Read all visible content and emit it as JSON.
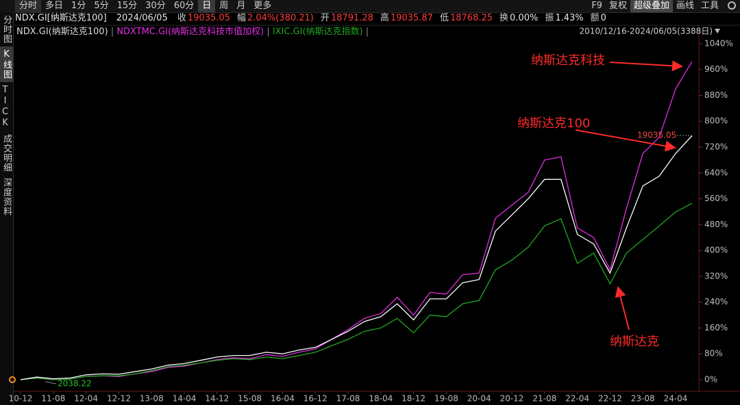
{
  "toolbar": {
    "periods": [
      "分时",
      "多日",
      "1分",
      "5分",
      "15分",
      "30分",
      "60分",
      "日",
      "周",
      "月",
      "更多"
    ],
    "tools": [
      "F9",
      "复权",
      "超级叠加",
      "画线",
      "工具"
    ]
  },
  "quote": {
    "symbol": "NDX.GI[纳斯达克100]",
    "date": "2024/06/05",
    "items": [
      {
        "label": "收",
        "value": "19035.05"
      },
      {
        "label": "幅",
        "value": "2.04%(380.21)"
      },
      {
        "label": "开",
        "value": "18791.28"
      },
      {
        "label": "高",
        "value": "19035.87"
      },
      {
        "label": "低",
        "value": "18768.25"
      },
      {
        "label": "换",
        "value": "0.00%"
      },
      {
        "label": "振",
        "value": "1.43%"
      },
      {
        "label": "额",
        "value": "0"
      }
    ]
  },
  "sidebar": [
    "分时图",
    "K线图",
    "TICK",
    "成交明细",
    "深度资料"
  ],
  "range": "2010/12/16-2024/06/05(3388日)",
  "chart_data": {
    "type": "line",
    "categories": [
      "10-12",
      null,
      "11-08",
      null,
      "12-04",
      null,
      "12-12",
      null,
      "13-08",
      null,
      "14-04",
      null,
      "14-12",
      null,
      "15-08",
      null,
      "16-04",
      null,
      "16-12",
      null,
      "17-08",
      null,
      "18-04",
      null,
      "18-12",
      null,
      "19-08",
      null,
      "20-04",
      null,
      "20-12",
      null,
      "21-08",
      null,
      "22-04",
      null,
      "22-12",
      null,
      "23-08",
      null,
      "24-04",
      null
    ],
    "series": [
      {
        "name": "NDX.GI(纳斯达克100)",
        "color": "#ffffff",
        "values": [
          0,
          8,
          3,
          5,
          15,
          18,
          17,
          25,
          33,
          45,
          50,
          60,
          70,
          75,
          75,
          85,
          80,
          92,
          100,
          125,
          150,
          180,
          195,
          235,
          185,
          250,
          250,
          300,
          310,
          460,
          510,
          560,
          620,
          620,
          450,
          420,
          330,
          470,
          600,
          630,
          700,
          755
        ]
      },
      {
        "name": "NDXTMC.GI(纳斯达克科技市值加权)",
        "color": "#e030e0",
        "values": [
          0,
          5,
          0,
          2,
          10,
          12,
          10,
          18,
          25,
          38,
          42,
          52,
          62,
          68,
          65,
          78,
          72,
          85,
          95,
          125,
          155,
          190,
          205,
          255,
          200,
          270,
          265,
          325,
          330,
          500,
          540,
          580,
          680,
          690,
          470,
          440,
          340,
          530,
          700,
          750,
          900,
          985
        ]
      },
      {
        "name": "IXIC.GI(纳斯达克指数)",
        "color": "#22a822",
        "values": [
          0,
          5,
          0,
          2,
          10,
          12,
          12,
          18,
          28,
          40,
          45,
          52,
          60,
          65,
          62,
          70,
          65,
          75,
          85,
          105,
          125,
          150,
          160,
          190,
          145,
          200,
          195,
          235,
          245,
          340,
          370,
          410,
          476,
          498,
          360,
          392,
          297,
          392,
          434,
          476,
          519,
          546
        ]
      }
    ],
    "ylim": [
      -36,
      1080
    ],
    "yticks": [
      {
        "value": 0,
        "label": "0%"
      },
      {
        "value": 80,
        "label": "80%"
      },
      {
        "value": 160,
        "label": "160%"
      },
      {
        "value": 240,
        "label": "240%"
      },
      {
        "value": 320,
        "label": "320%"
      },
      {
        "value": 400,
        "label": "400%"
      },
      {
        "value": 480,
        "label": "480%"
      },
      {
        "value": 560,
        "label": "560%"
      },
      {
        "value": 640,
        "label": "640%"
      },
      {
        "value": 720,
        "label": "720%"
      },
      {
        "value": 800,
        "label": "800%"
      },
      {
        "value": 880,
        "label": "880%"
      },
      {
        "value": 960,
        "label": "960%"
      },
      {
        "value": 1040,
        "label": "1040%"
      }
    ],
    "grid": false,
    "price_labels": [
      "19035.05",
      "2038.22"
    ],
    "annotations": [
      "纳斯达克科技",
      "纳斯达克100",
      "纳斯达克"
    ]
  }
}
